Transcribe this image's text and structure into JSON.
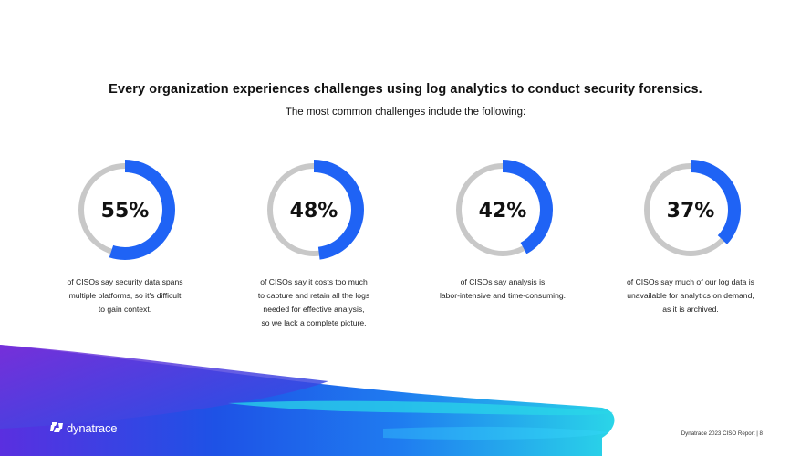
{
  "headline": "Every organization experiences challenges using log analytics to conduct security forensics.",
  "subheadline": "The most common challenges include the following:",
  "stats": [
    {
      "value": "55%",
      "percent": 55,
      "caption_lines": [
        "of CISOs say security data spans",
        "multiple platforms, so it's difficult",
        "to gain context."
      ]
    },
    {
      "value": "48%",
      "percent": 48,
      "caption_lines": [
        "of CISOs say it costs too much",
        "to capture and retain all the logs",
        "needed for effective analysis,",
        "so we lack a complete picture."
      ]
    },
    {
      "value": "42%",
      "percent": 42,
      "caption_lines": [
        "of CISOs say analysis is",
        "labor-intensive and time-consuming."
      ]
    },
    {
      "value": "37%",
      "percent": 37,
      "caption_lines": [
        "of CISOs say much of our log data is",
        "unavailable for analytics on demand,",
        "as it is archived."
      ]
    }
  ],
  "footer": {
    "logo_text": "dynatrace",
    "report_label": "Dynatrace 2023 CISO Report | 8"
  },
  "colors": {
    "ring_fill": "#1f63f5",
    "ring_track": "#c8c8c8",
    "wave_blue": "#1e52e6",
    "wave_purple": "#6a2bd8",
    "wave_cyan": "#2ad5e8"
  },
  "icons": {
    "logo_mark": "dynatrace-logo-icon"
  }
}
